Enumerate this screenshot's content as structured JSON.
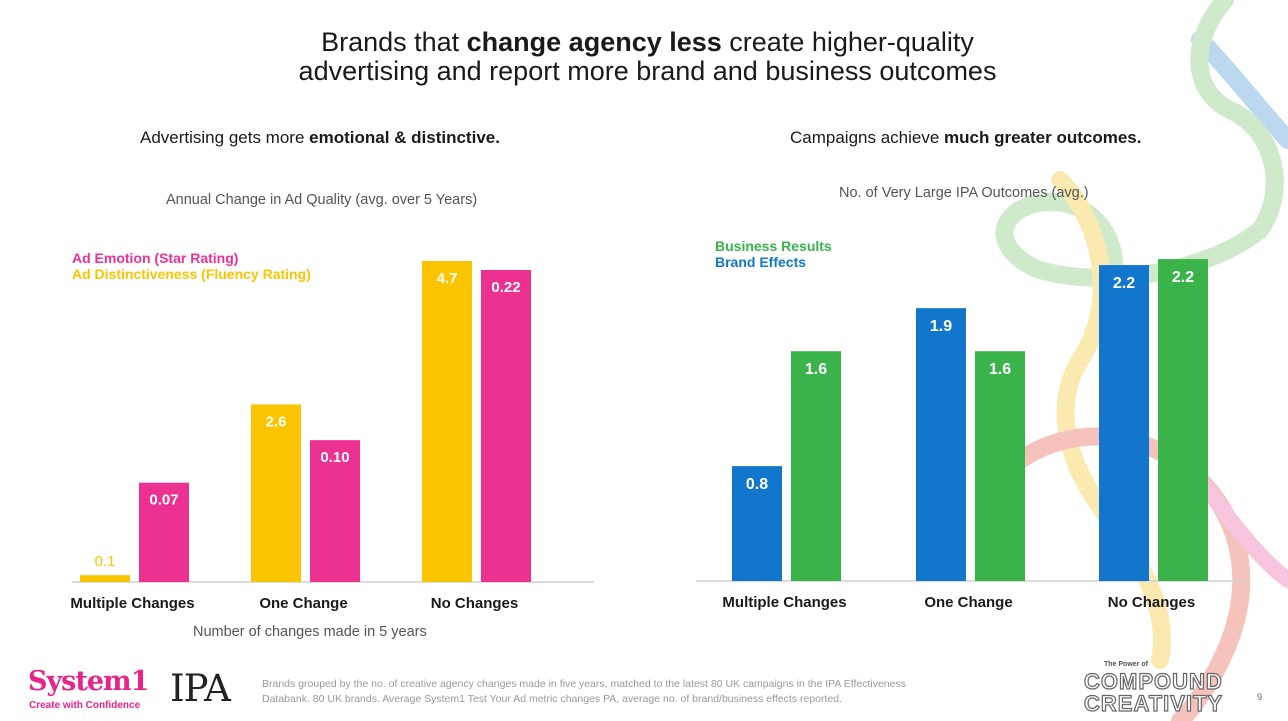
{
  "title": {
    "line1_pre": "Brands that ",
    "line1_bold": "change agency less",
    "line1_post": " create higher-quality",
    "line2": "advertising and report more brand and business outcomes"
  },
  "left_panel": {
    "heading_pre": "Advertising gets more ",
    "heading_bold": "emotional & distinctive."
  },
  "right_panel": {
    "heading_pre": "Campaigns achieve ",
    "heading_bold": "much greater outcomes."
  },
  "chart_data": [
    {
      "type": "bar",
      "title": "Annual Change in Ad Quality (avg. over 5 Years)",
      "xlabel": "Number of changes made in 5 years",
      "ylabel": "",
      "categories": [
        "Multiple Changes",
        "One Change",
        "No Changes"
      ],
      "legend_position": "top-left",
      "series": [
        {
          "name": "Ad Distinctiveness (Fluency Rating)",
          "color": "#fac400",
          "values": [
            0.1,
            2.6,
            4.7
          ],
          "labels": [
            "0.1",
            "2.6",
            "4.7"
          ]
        },
        {
          "name": "Ad Emotion (Star Rating)",
          "color": "#ec3191",
          "values": [
            0.07,
            0.1,
            0.22
          ],
          "labels": [
            "0.07",
            "0.10",
            "0.22"
          ]
        }
      ]
    },
    {
      "type": "bar",
      "title": "No. of Very Large IPA Outcomes (avg.)",
      "xlabel": "",
      "ylabel": "",
      "categories": [
        "Multiple Changes",
        "One Change",
        "No Changes"
      ],
      "legend_position": "top-left",
      "series": [
        {
          "name": "Brand Effects",
          "color": "#1277cc",
          "values": [
            0.8,
            1.9,
            2.2
          ],
          "labels": [
            "0.8",
            "1.9",
            "2.2"
          ]
        },
        {
          "name": "Business Results",
          "color": "#39b34a",
          "values": [
            1.6,
            1.6,
            2.2
          ],
          "labels": [
            "1.6",
            "1.6",
            "2.2"
          ]
        }
      ]
    }
  ],
  "footer": {
    "note_line1": "Brands grouped by the no. of creative agency changes made in five years, matched to the latest 80 UK campaigns in the IPA Effectiveness",
    "note_line2": "Databank. 80 UK brands. Average System1 Test Your Ad metric changes PA, average no. of brand/business effects reported.",
    "system1_logo": "System1",
    "system1_tagline": "Create with Confidence",
    "ipa_logo": "IPA",
    "compound_small": "The Power of",
    "compound_line1": "COMPOUND",
    "compound_line2": "CREATIVITY",
    "page_number": "9"
  },
  "colors": {
    "pink": "#ec3191",
    "yellow": "#fac400",
    "blue": "#1277cc",
    "green": "#39b34a"
  }
}
